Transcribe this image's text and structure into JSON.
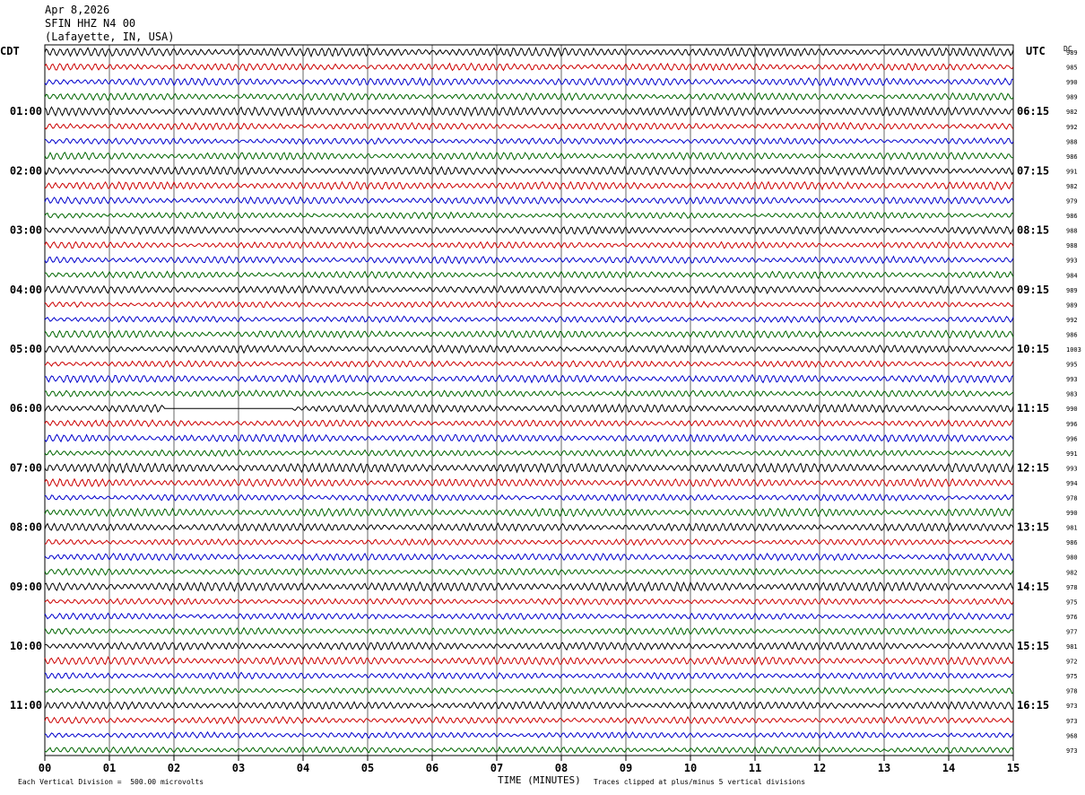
{
  "header": {
    "date": "Apr 8,2026",
    "station": "SFIN HHZ N4 00",
    "location": "(Lafayette, IN, USA)"
  },
  "left_tz": "CDT",
  "right_tz": "UTC",
  "dc_label": "DC",
  "footer": {
    "scale_note": "Each Vertical Division =  500.00 microvolts",
    "xlabel": "TIME (MINUTES)",
    "clip_note": "Traces clipped at plus/minus 5 vertical divisions"
  },
  "colors": {
    "cycle": [
      "#000000",
      "#cc0000",
      "#0000cc",
      "#006600"
    ]
  },
  "chart_data": {
    "type": "line",
    "title": "",
    "xlabel": "TIME (MINUTES)",
    "ylabel": "",
    "xlim": [
      0,
      15
    ],
    "x_ticks": [
      "00",
      "01",
      "02",
      "03",
      "04",
      "05",
      "06",
      "07",
      "08",
      "09",
      "10",
      "11",
      "12",
      "13",
      "14",
      "15"
    ],
    "row_minutes": 15,
    "rows": 48,
    "left_hour_labels": [
      "01:00",
      "02:00",
      "03:00",
      "04:00",
      "05:00",
      "06:00",
      "07:00",
      "08:00",
      "09:00",
      "10:00",
      "11:00"
    ],
    "right_hour_labels": [
      "06:15",
      "07:15",
      "08:15",
      "09:15",
      "10:15",
      "11:15",
      "12:15",
      "13:15",
      "14:15",
      "15:15",
      "16:15"
    ],
    "dc_offsets": [
      989,
      985,
      990,
      989,
      982,
      992,
      988,
      986,
      991,
      982,
      979,
      986,
      988,
      988,
      993,
      984,
      989,
      989,
      992,
      986,
      1003,
      995,
      993,
      983,
      990,
      996,
      996,
      991,
      993,
      994,
      978,
      990,
      981,
      986,
      980,
      982,
      978,
      975,
      976,
      977,
      981,
      972,
      975,
      978,
      973,
      973,
      968,
      973
    ],
    "gap": {
      "row": 24,
      "x_start": 1.85,
      "x_end": 3.85
    }
  }
}
